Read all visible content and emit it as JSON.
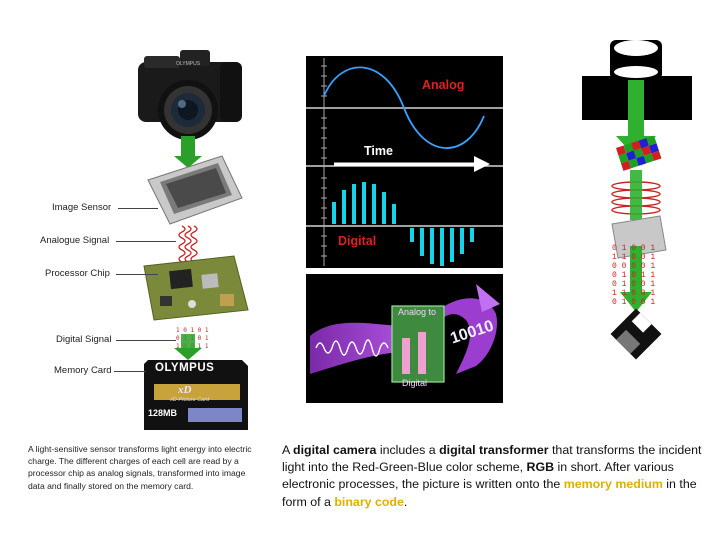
{
  "left_diagram": {
    "labels": {
      "image_sensor": "Image Sensor",
      "analogue_signal": "Analogue Signal",
      "processor_chip": "Processor Chip",
      "digital_signal": "Digital Signal",
      "memory_card": "Memory Card"
    },
    "memory_card_brand": "OLYMPUS",
    "memory_card_logo": "xD",
    "memory_card_sub": "xD-Picture Card",
    "memory_card_size": "128MB",
    "camera_brand": "OLYMPUS",
    "caption": "A light-sensitive sensor transforms light energy into electric charge. The different charges of each cell are read by a processor chip as analog signals, transformed into image data and finally stored on the memory card."
  },
  "signal_panel": {
    "analog_label": "Analog",
    "time_label": "Time",
    "digital_label": "Digital",
    "colors": {
      "analog": "#e02020",
      "digital": "#e02020",
      "bars": "#19d3e6",
      "wave": "#3aa0ff"
    }
  },
  "converter_panel": {
    "top_label": "Analog to",
    "bottom_label": "Digital",
    "digits": "10010"
  },
  "right_diagram": {
    "binary_rows": [
      "0 1 0 0 1",
      "1 1 0 0 1",
      "0 0 0 0 1",
      "0 1 0 1 1",
      "0 1 0 0 1",
      "1 1 0 0 1",
      "0 1 0 0 1"
    ]
  },
  "caption_right": {
    "p1": "A ",
    "b1": "digital camera",
    "p2": " includes a ",
    "b2": "digital transformer",
    "p3": " that transforms the incident light into the Red-Green-Blue color scheme, ",
    "b3": "RGB",
    "p4": " in short. After various electronic processes, the picture is written onto the ",
    "h1": "memory medium",
    "p5": " in the form of a ",
    "h2": "binary code",
    "p6": "."
  }
}
